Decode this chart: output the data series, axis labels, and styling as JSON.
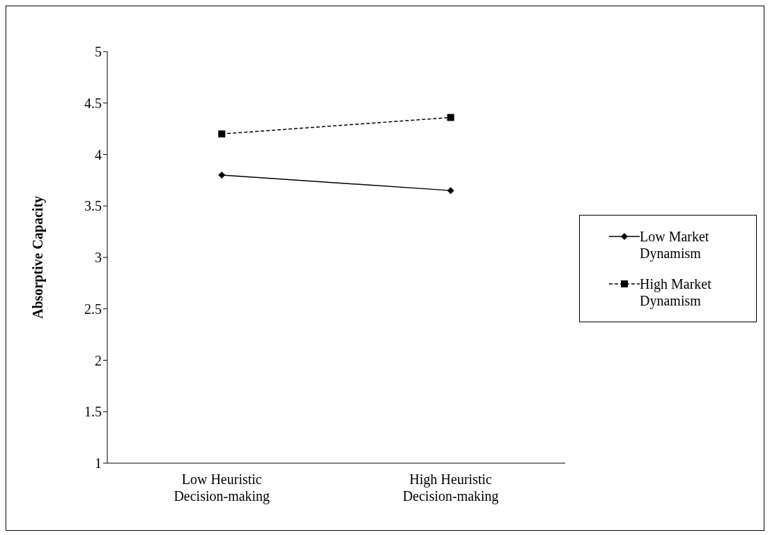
{
  "chart_data": {
    "type": "line",
    "ylabel": "Absorptive Capacity",
    "categories": [
      "Low Heuristic Decision-making",
      "High Heuristic Decision-making"
    ],
    "series": [
      {
        "name": "Low Market Dynamism",
        "color": "#000000",
        "values": [
          3.8,
          3.65
        ],
        "marker": "diamond",
        "line_style": "solid"
      },
      {
        "name": "High Market Dynamism",
        "color": "#000000",
        "values": [
          4.2,
          4.36
        ],
        "marker": "square",
        "line_style": "dashed"
      }
    ],
    "ylim": [
      1,
      5
    ],
    "yticks": [
      1,
      1.5,
      2,
      2.5,
      3,
      3.5,
      4,
      4.5,
      5
    ],
    "grid": false,
    "legend": "right"
  }
}
